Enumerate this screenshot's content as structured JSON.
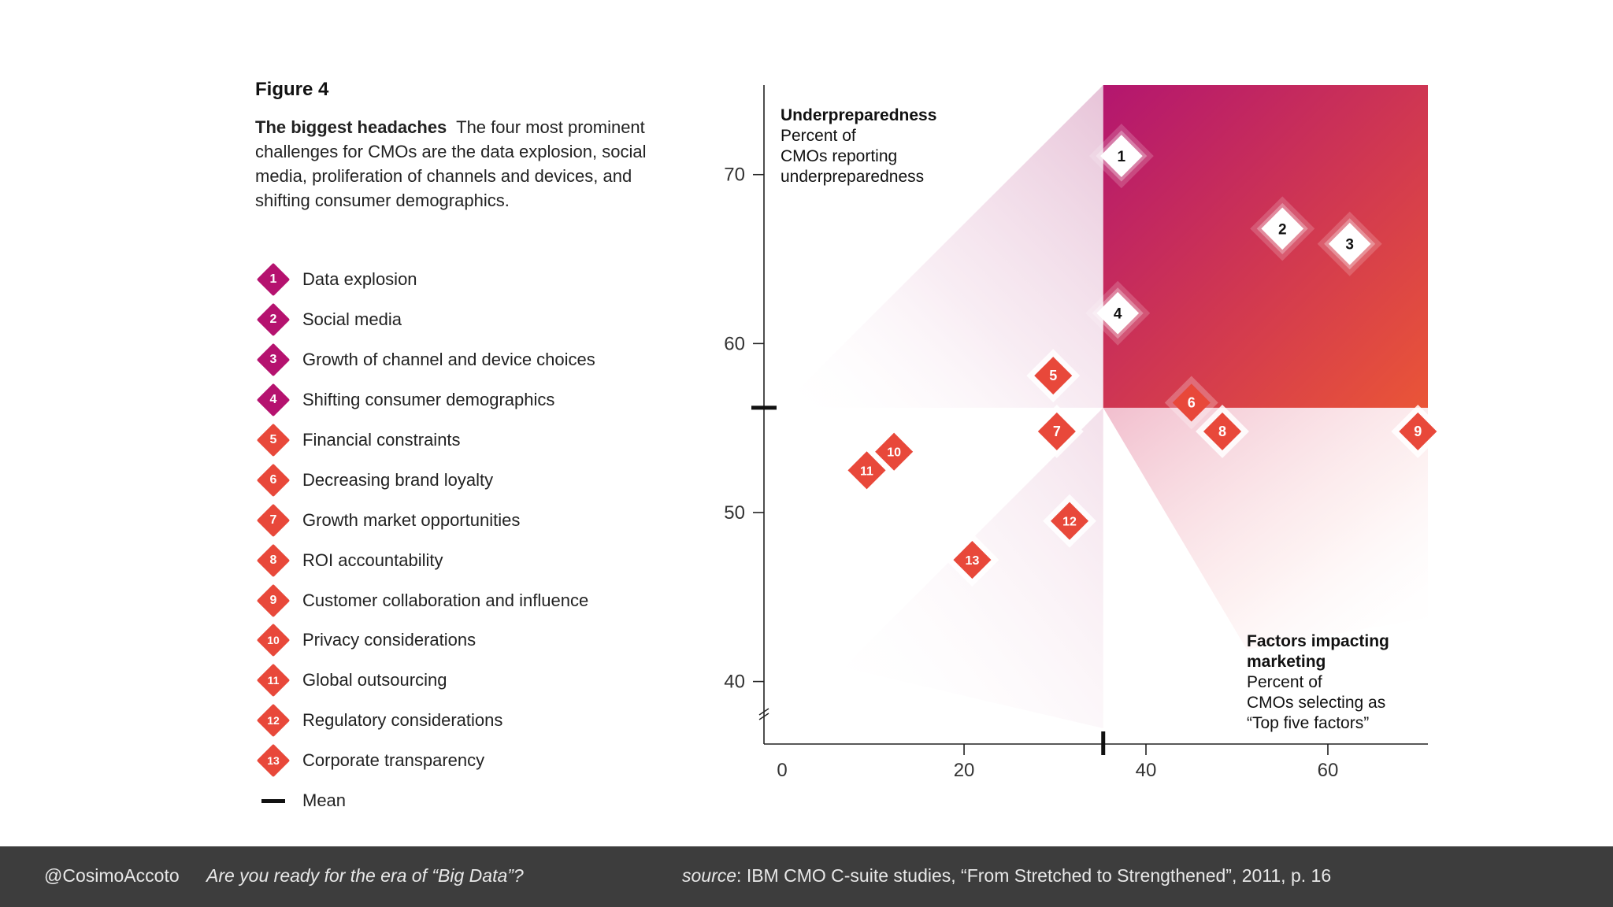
{
  "figure": {
    "label": "Figure 4",
    "caption_lead": "The biggest headaches",
    "caption_body": "The four most prominent challenges for CMOs are the data explosion, social media, proliferation of channels and devices, and shifting consumer demographics."
  },
  "legend": {
    "items": [
      {
        "num": "1",
        "label": "Data explosion",
        "group": "top"
      },
      {
        "num": "2",
        "label": "Social media",
        "group": "top"
      },
      {
        "num": "3",
        "label": "Growth of channel and device choices",
        "group": "top"
      },
      {
        "num": "4",
        "label": "Shifting consumer demographics",
        "group": "top"
      },
      {
        "num": "5",
        "label": "Financial constraints",
        "group": "other"
      },
      {
        "num": "6",
        "label": "Decreasing brand loyalty",
        "group": "other"
      },
      {
        "num": "7",
        "label": "Growth market opportunities",
        "group": "other"
      },
      {
        "num": "8",
        "label": "ROI accountability",
        "group": "other"
      },
      {
        "num": "9",
        "label": "Customer collaboration and influence",
        "group": "other"
      },
      {
        "num": "10",
        "label": "Privacy considerations",
        "group": "other"
      },
      {
        "num": "11",
        "label": "Global outsourcing",
        "group": "other"
      },
      {
        "num": "12",
        "label": "Regulatory considerations",
        "group": "other"
      },
      {
        "num": "13",
        "label": "Corporate transparency",
        "group": "other"
      }
    ],
    "mean_label": "Mean"
  },
  "colors": {
    "top_group": "#b5126f",
    "other_group": "#e8483a",
    "quadrant_top_left": "#b3166f",
    "quadrant_bottom_right": "#e9503a",
    "footer_bg": "#3d3d3d"
  },
  "chart_data": {
    "type": "scatter",
    "title": "",
    "ylabel_title": "Underpreparedness",
    "ylabel_lines": [
      "Percent of",
      "CMOs reporting",
      "underpreparedness"
    ],
    "xlabel_title_lines": [
      "Factors impacting",
      "marketing"
    ],
    "xlabel_lines": [
      "Percent of",
      "CMOs selecting as",
      "“Top five factors”"
    ],
    "xlim": [
      -2,
      71
    ],
    "ylim": [
      36.3,
      75.3
    ],
    "x_ticks": [
      0,
      20,
      40,
      60
    ],
    "x_tick_labels": [
      "0",
      "20",
      "40",
      "60"
    ],
    "y_ticks": [
      40,
      50,
      60,
      70
    ],
    "y_tick_labels": [
      "40",
      "50",
      "60",
      "70"
    ],
    "y_axis_break": true,
    "mean_x": 35.3,
    "mean_y": 56.2,
    "points": [
      {
        "id": "1",
        "x": 37.3,
        "y": 71.1,
        "group": "top"
      },
      {
        "id": "2",
        "x": 55.0,
        "y": 66.8,
        "group": "top"
      },
      {
        "id": "3",
        "x": 62.4,
        "y": 65.9,
        "group": "top"
      },
      {
        "id": "4",
        "x": 36.9,
        "y": 61.8,
        "group": "top"
      },
      {
        "id": "5",
        "x": 29.8,
        "y": 58.1,
        "group": "other"
      },
      {
        "id": "6",
        "x": 45.0,
        "y": 56.5,
        "group": "other"
      },
      {
        "id": "7",
        "x": 30.2,
        "y": 54.8,
        "group": "other"
      },
      {
        "id": "8",
        "x": 48.4,
        "y": 54.8,
        "group": "other"
      },
      {
        "id": "9",
        "x": 69.9,
        "y": 54.8,
        "group": "other"
      },
      {
        "id": "10",
        "x": 12.3,
        "y": 53.6,
        "group": "other"
      },
      {
        "id": "11",
        "x": 9.3,
        "y": 52.5,
        "group": "other"
      },
      {
        "id": "12",
        "x": 31.6,
        "y": 49.5,
        "group": "other"
      },
      {
        "id": "13",
        "x": 20.9,
        "y": 47.2,
        "group": "other"
      }
    ]
  },
  "footer": {
    "handle": "@CosimoAccoto",
    "talk_title": "Are you ready for the era of “Big Data”?",
    "source_label": "source",
    "source_text": ": IBM CMO C-suite studies, “From Stretched to Strengthened”, 2011, p. 16"
  }
}
